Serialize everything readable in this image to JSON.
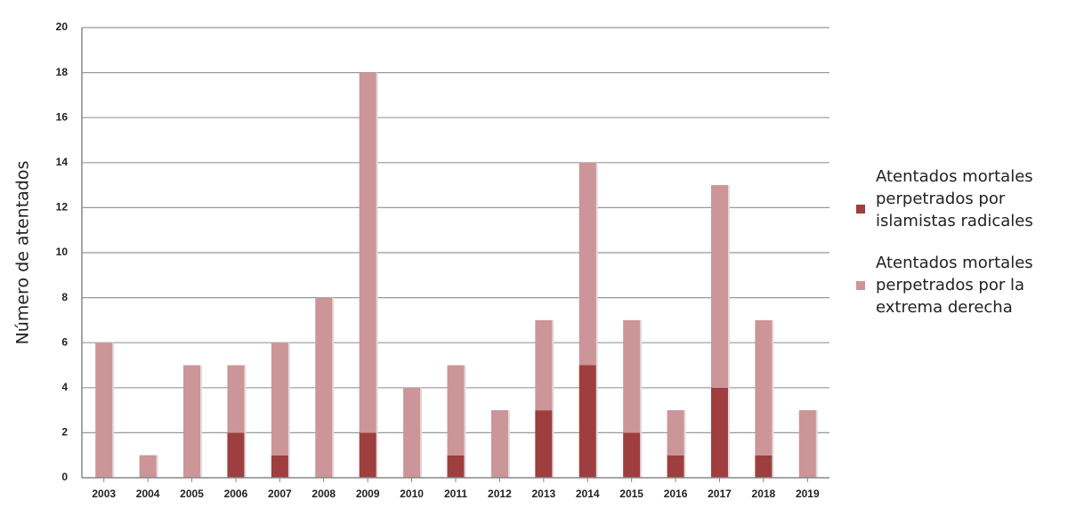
{
  "chart_data": {
    "type": "bar",
    "stacked": true,
    "title": "",
    "xlabel": "",
    "ylabel": "Número de atentados",
    "ylim": [
      0,
      20
    ],
    "yticks": [
      0,
      2,
      4,
      6,
      8,
      10,
      12,
      14,
      16,
      18,
      20
    ],
    "grid": true,
    "legend_position": "right",
    "categories": [
      "2003",
      "2004",
      "2005",
      "2006",
      "2007",
      "2008",
      "2009",
      "2010",
      "2011",
      "2012",
      "2013",
      "2014",
      "2015",
      "2016",
      "2017",
      "2018",
      "2019"
    ],
    "series": [
      {
        "name": "Atentados mortales perpetrados por islamistas radicales",
        "color": "#9e3e3e",
        "values": [
          0,
          0,
          0,
          2,
          1,
          0,
          2,
          0,
          1,
          0,
          3,
          5,
          2,
          1,
          4,
          1,
          0
        ]
      },
      {
        "name": "Atentados mortales perpetrados por la extrema derecha",
        "color": "#cc9597",
        "values": [
          6,
          1,
          5,
          3,
          5,
          8,
          16,
          4,
          4,
          3,
          4,
          9,
          5,
          2,
          9,
          6,
          3
        ]
      }
    ]
  },
  "legend": {
    "items": [
      {
        "lines": [
          "Atentados mortales",
          "perpetrados por",
          "islamistas radicales"
        ],
        "color": "#9e3e3e"
      },
      {
        "lines": [
          "Atentados mortales",
          "perpetrados por la",
          "extrema derecha"
        ],
        "color": "#cc9597"
      }
    ]
  }
}
